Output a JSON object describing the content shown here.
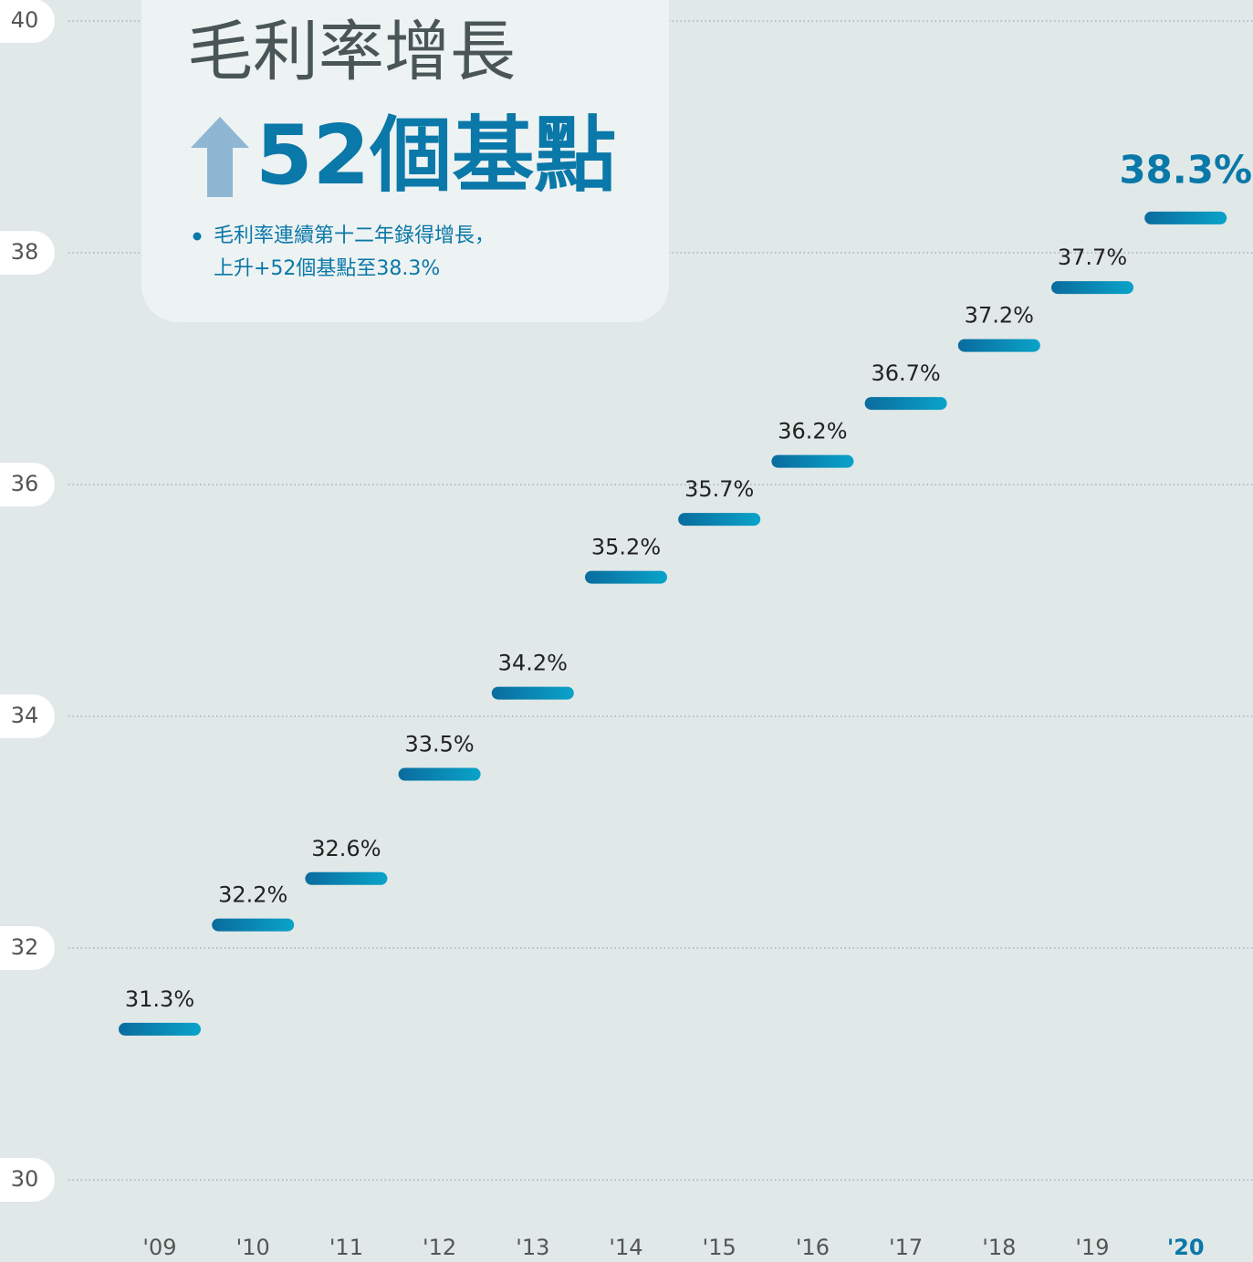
{
  "chart_data": {
    "type": "bar",
    "title": "毛利率增長",
    "subtitle": "52個基點",
    "annotation": [
      "毛利率連續第十二年錄得增長，",
      "上升+52個基點至38.3%"
    ],
    "categories": [
      "'09",
      "'10",
      "'11",
      "'12",
      "'13",
      "'14",
      "'15",
      "'16",
      "'17",
      "'18",
      "'19",
      "'20"
    ],
    "values": [
      31.3,
      32.2,
      32.6,
      33.5,
      34.2,
      35.2,
      35.7,
      36.2,
      36.7,
      37.2,
      37.7,
      38.3
    ],
    "value_labels": [
      "31.3%",
      "32.2%",
      "32.6%",
      "33.5%",
      "34.2%",
      "35.2%",
      "35.7%",
      "36.2%",
      "36.7%",
      "37.2%",
      "37.7%",
      "38.3%"
    ],
    "color": [
      "#0a6c9e",
      "#0aa3c9"
    ],
    "ylim": [
      30,
      40
    ],
    "yticks": [
      30,
      32,
      34,
      36,
      38,
      40
    ],
    "grid": true
  }
}
